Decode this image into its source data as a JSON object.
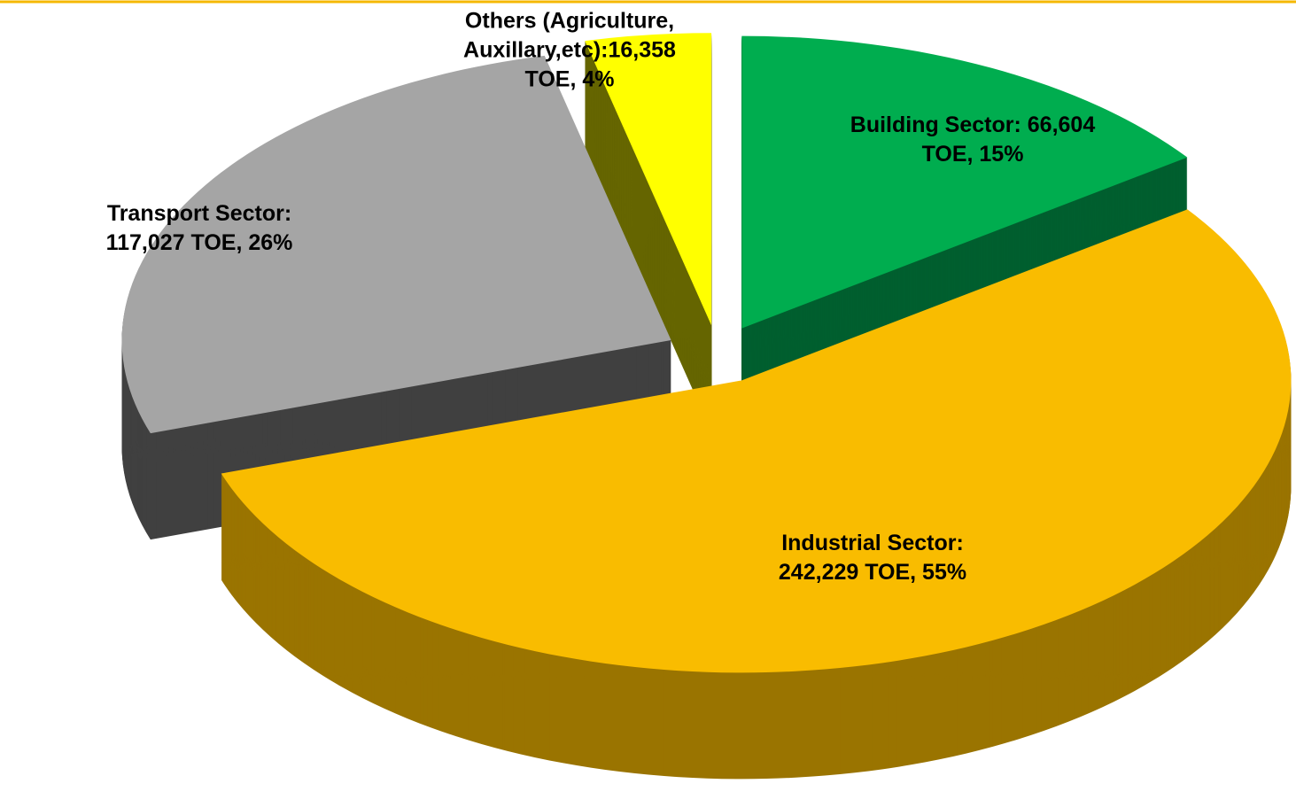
{
  "chart_data": {
    "type": "pie3d",
    "values": [
      66604,
      242229,
      117027,
      16358
    ],
    "value_labels": [
      "Building Sector: 66,604 TOE, 15%",
      "Industrial Sector: 242,229 TOE, 55%",
      "Transport Sector: 117,027 TOE, 26%",
      "Others (Agriculture, Auxillary,etc):16,358 TOE, 4%"
    ],
    "colors": [
      "#00ad4f",
      "#f9bc00",
      "#a5a5a5",
      "#ffff00"
    ],
    "side_colors": [
      "#005f2f",
      "#9a7400",
      "#404040",
      "#666600"
    ]
  }
}
